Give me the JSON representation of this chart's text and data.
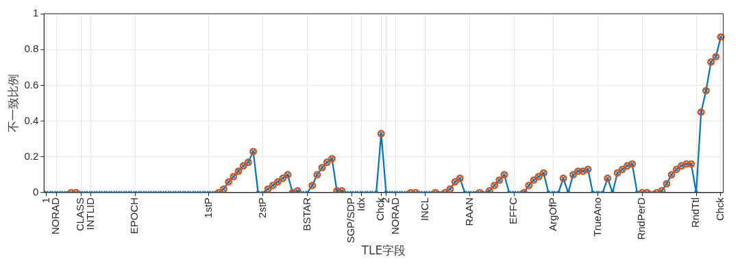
{
  "chart_data": {
    "type": "line",
    "xlabel": "TLE字段",
    "ylabel": "不一致比例",
    "ylim": [
      0,
      1
    ],
    "yticks": [
      0,
      0.2,
      0.4,
      0.6,
      0.8,
      1
    ],
    "grid": true,
    "categories": [
      "1",
      null,
      "NORAD",
      null,
      null,
      null,
      null,
      "CLASS",
      null,
      "INTLID",
      null,
      null,
      null,
      null,
      null,
      null,
      null,
      null,
      "EPOCH",
      null,
      null,
      null,
      null,
      null,
      null,
      null,
      null,
      null,
      null,
      null,
      null,
      null,
      null,
      "1stP",
      null,
      null,
      null,
      null,
      null,
      null,
      null,
      null,
      null,
      null,
      "2stP",
      null,
      null,
      null,
      null,
      null,
      null,
      null,
      null,
      "BSTAR",
      null,
      null,
      null,
      null,
      null,
      null,
      null,
      null,
      "SGP/SDP",
      null,
      "Idx",
      null,
      null,
      null,
      "Chck",
      "2",
      null,
      "NORAD",
      null,
      null,
      null,
      null,
      null,
      "INCL",
      null,
      null,
      null,
      null,
      null,
      null,
      null,
      null,
      "RAAN",
      null,
      null,
      null,
      null,
      null,
      null,
      null,
      null,
      "EFFC",
      null,
      null,
      null,
      null,
      null,
      null,
      null,
      "ArgOfP",
      null,
      null,
      null,
      null,
      null,
      null,
      null,
      null,
      "TrueAno",
      null,
      null,
      null,
      null,
      null,
      null,
      null,
      null,
      "RndPerD",
      null,
      null,
      null,
      null,
      null,
      null,
      null,
      null,
      null,
      null,
      "RndTtl",
      null,
      null,
      null,
      null,
      "Chck"
    ],
    "series": [
      {
        "type": "line",
        "color": "#0072bd",
        "marker": "cross",
        "line_style": "solid",
        "values": [
          0,
          0,
          0,
          0,
          0,
          0,
          0,
          0,
          0,
          0,
          0,
          0,
          0,
          0,
          0,
          0,
          0,
          0,
          0,
          0,
          0,
          0,
          0,
          0,
          0,
          0,
          0,
          0,
          0,
          0,
          0,
          0,
          0,
          0,
          0,
          0,
          0.02,
          0.06,
          0.09,
          0.12,
          0.15,
          0.17,
          0.23,
          0,
          0,
          0.02,
          0.04,
          0.06,
          0.08,
          0.1,
          0,
          0.01,
          0,
          0,
          0.04,
          0.1,
          0.14,
          0.17,
          0.19,
          0.01,
          0.01,
          0,
          0,
          0,
          0,
          0,
          0,
          0,
          0.33,
          0,
          0,
          0,
          0,
          0,
          0,
          0,
          0,
          0,
          0,
          0,
          0,
          0,
          0.02,
          0.06,
          0.08,
          0,
          0,
          0,
          0,
          0,
          0.01,
          0.04,
          0.07,
          0.1,
          0,
          0,
          0,
          0,
          0.04,
          0.07,
          0.09,
          0.11,
          0,
          0,
          0,
          0.08,
          0,
          0.1,
          0.12,
          0.12,
          0.13,
          0,
          0,
          0,
          0.08,
          0,
          0.11,
          0.13,
          0.15,
          0.16,
          0,
          0,
          0,
          0,
          0,
          0.01,
          0.05,
          0.1,
          0.13,
          0.15,
          0.16,
          0.16,
          0,
          0.45,
          0.57,
          0.73,
          0.76,
          0.87
        ]
      },
      {
        "type": "scatter",
        "color": "#d95319",
        "marker": "circle",
        "values": [
          null,
          null,
          null,
          null,
          null,
          0,
          0,
          null,
          null,
          null,
          null,
          null,
          null,
          null,
          null,
          null,
          null,
          null,
          null,
          null,
          null,
          null,
          null,
          null,
          null,
          null,
          null,
          null,
          null,
          null,
          null,
          null,
          null,
          null,
          null,
          0,
          0.02,
          0.06,
          0.09,
          0.12,
          0.15,
          0.17,
          0.23,
          null,
          null,
          0.02,
          0.04,
          0.06,
          0.08,
          0.1,
          0,
          0.01,
          null,
          null,
          0.04,
          0.1,
          0.14,
          0.17,
          0.19,
          0.01,
          0.01,
          null,
          null,
          null,
          null,
          null,
          null,
          null,
          0.33,
          null,
          null,
          null,
          null,
          null,
          0,
          0,
          null,
          null,
          null,
          0,
          null,
          0,
          0.02,
          0.06,
          0.08,
          null,
          null,
          null,
          0,
          null,
          0.01,
          0.04,
          0.07,
          0.1,
          null,
          null,
          null,
          0,
          0.04,
          0.07,
          0.09,
          0.11,
          null,
          null,
          null,
          0.08,
          null,
          0.1,
          0.12,
          0.12,
          0.13,
          null,
          null,
          null,
          0.08,
          null,
          0.11,
          0.13,
          0.15,
          0.16,
          null,
          0,
          0,
          null,
          0,
          0.01,
          0.05,
          0.1,
          0.13,
          0.15,
          0.16,
          0.16,
          null,
          0.45,
          0.57,
          0.73,
          0.76,
          0.87
        ]
      }
    ]
  }
}
